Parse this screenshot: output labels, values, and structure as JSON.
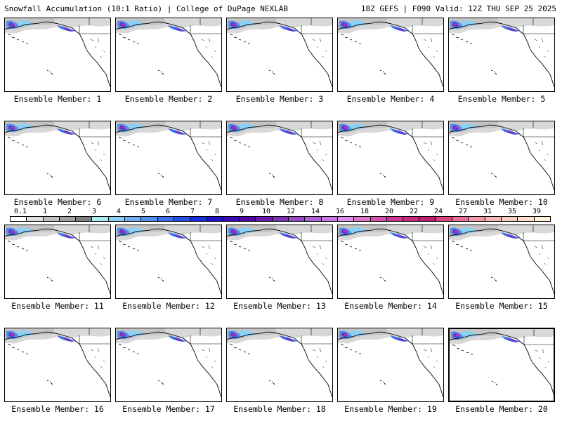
{
  "header": {
    "title_left": "Snowfall Accumulation (10:1 Ratio) | College of DuPage NEXLAB",
    "title_right": "18Z GEFS | F090 Valid: 12Z THU SEP 25 2025"
  },
  "members": [
    {
      "label": "Ensemble Member: 1"
    },
    {
      "label": "Ensemble Member: 2"
    },
    {
      "label": "Ensemble Member: 3"
    },
    {
      "label": "Ensemble Member: 4"
    },
    {
      "label": "Ensemble Member: 5"
    },
    {
      "label": "Ensemble Member: 6"
    },
    {
      "label": "Ensemble Member: 7"
    },
    {
      "label": "Ensemble Member: 8"
    },
    {
      "label": "Ensemble Member: 9"
    },
    {
      "label": "Ensemble Member: 10"
    },
    {
      "label": "Ensemble Member: 11"
    },
    {
      "label": "Ensemble Member: 12"
    },
    {
      "label": "Ensemble Member: 13"
    },
    {
      "label": "Ensemble Member: 14"
    },
    {
      "label": "Ensemble Member: 15"
    },
    {
      "label": "Ensemble Member: 16"
    },
    {
      "label": "Ensemble Member: 17"
    },
    {
      "label": "Ensemble Member: 18"
    },
    {
      "label": "Ensemble Member: 19"
    },
    {
      "label": "Ensemble Member: 20"
    }
  ],
  "colorbar": {
    "labels": [
      "0.1",
      "1",
      "2",
      "3",
      "4",
      "5",
      "6",
      "7",
      "8",
      "9",
      "10",
      "12",
      "14",
      "16",
      "18",
      "20",
      "22",
      "24",
      "27",
      "31",
      "35",
      "39"
    ],
    "colors": [
      "#ffffff",
      "#e0e0e0",
      "#c0c0c0",
      "#a0a0a0",
      "#7f7f7f",
      "#a8f0f0",
      "#8cd0f5",
      "#6fb0f0",
      "#5090f0",
      "#3a6ef0",
      "#2a4ee8",
      "#1a2ee0",
      "#2010c8",
      "#3a0ab4",
      "#52089e",
      "#6a1aa8",
      "#8030b8",
      "#9848c8",
      "#b060d8",
      "#c878e0",
      "#d890e8",
      "#e070c8",
      "#d850b0",
      "#d03898",
      "#c82a80",
      "#c02070",
      "#d84880",
      "#e87098",
      "#f098a8",
      "#f4b8b8",
      "#f8d0c0",
      "#fce0c8",
      "#fff0d8"
    ]
  }
}
